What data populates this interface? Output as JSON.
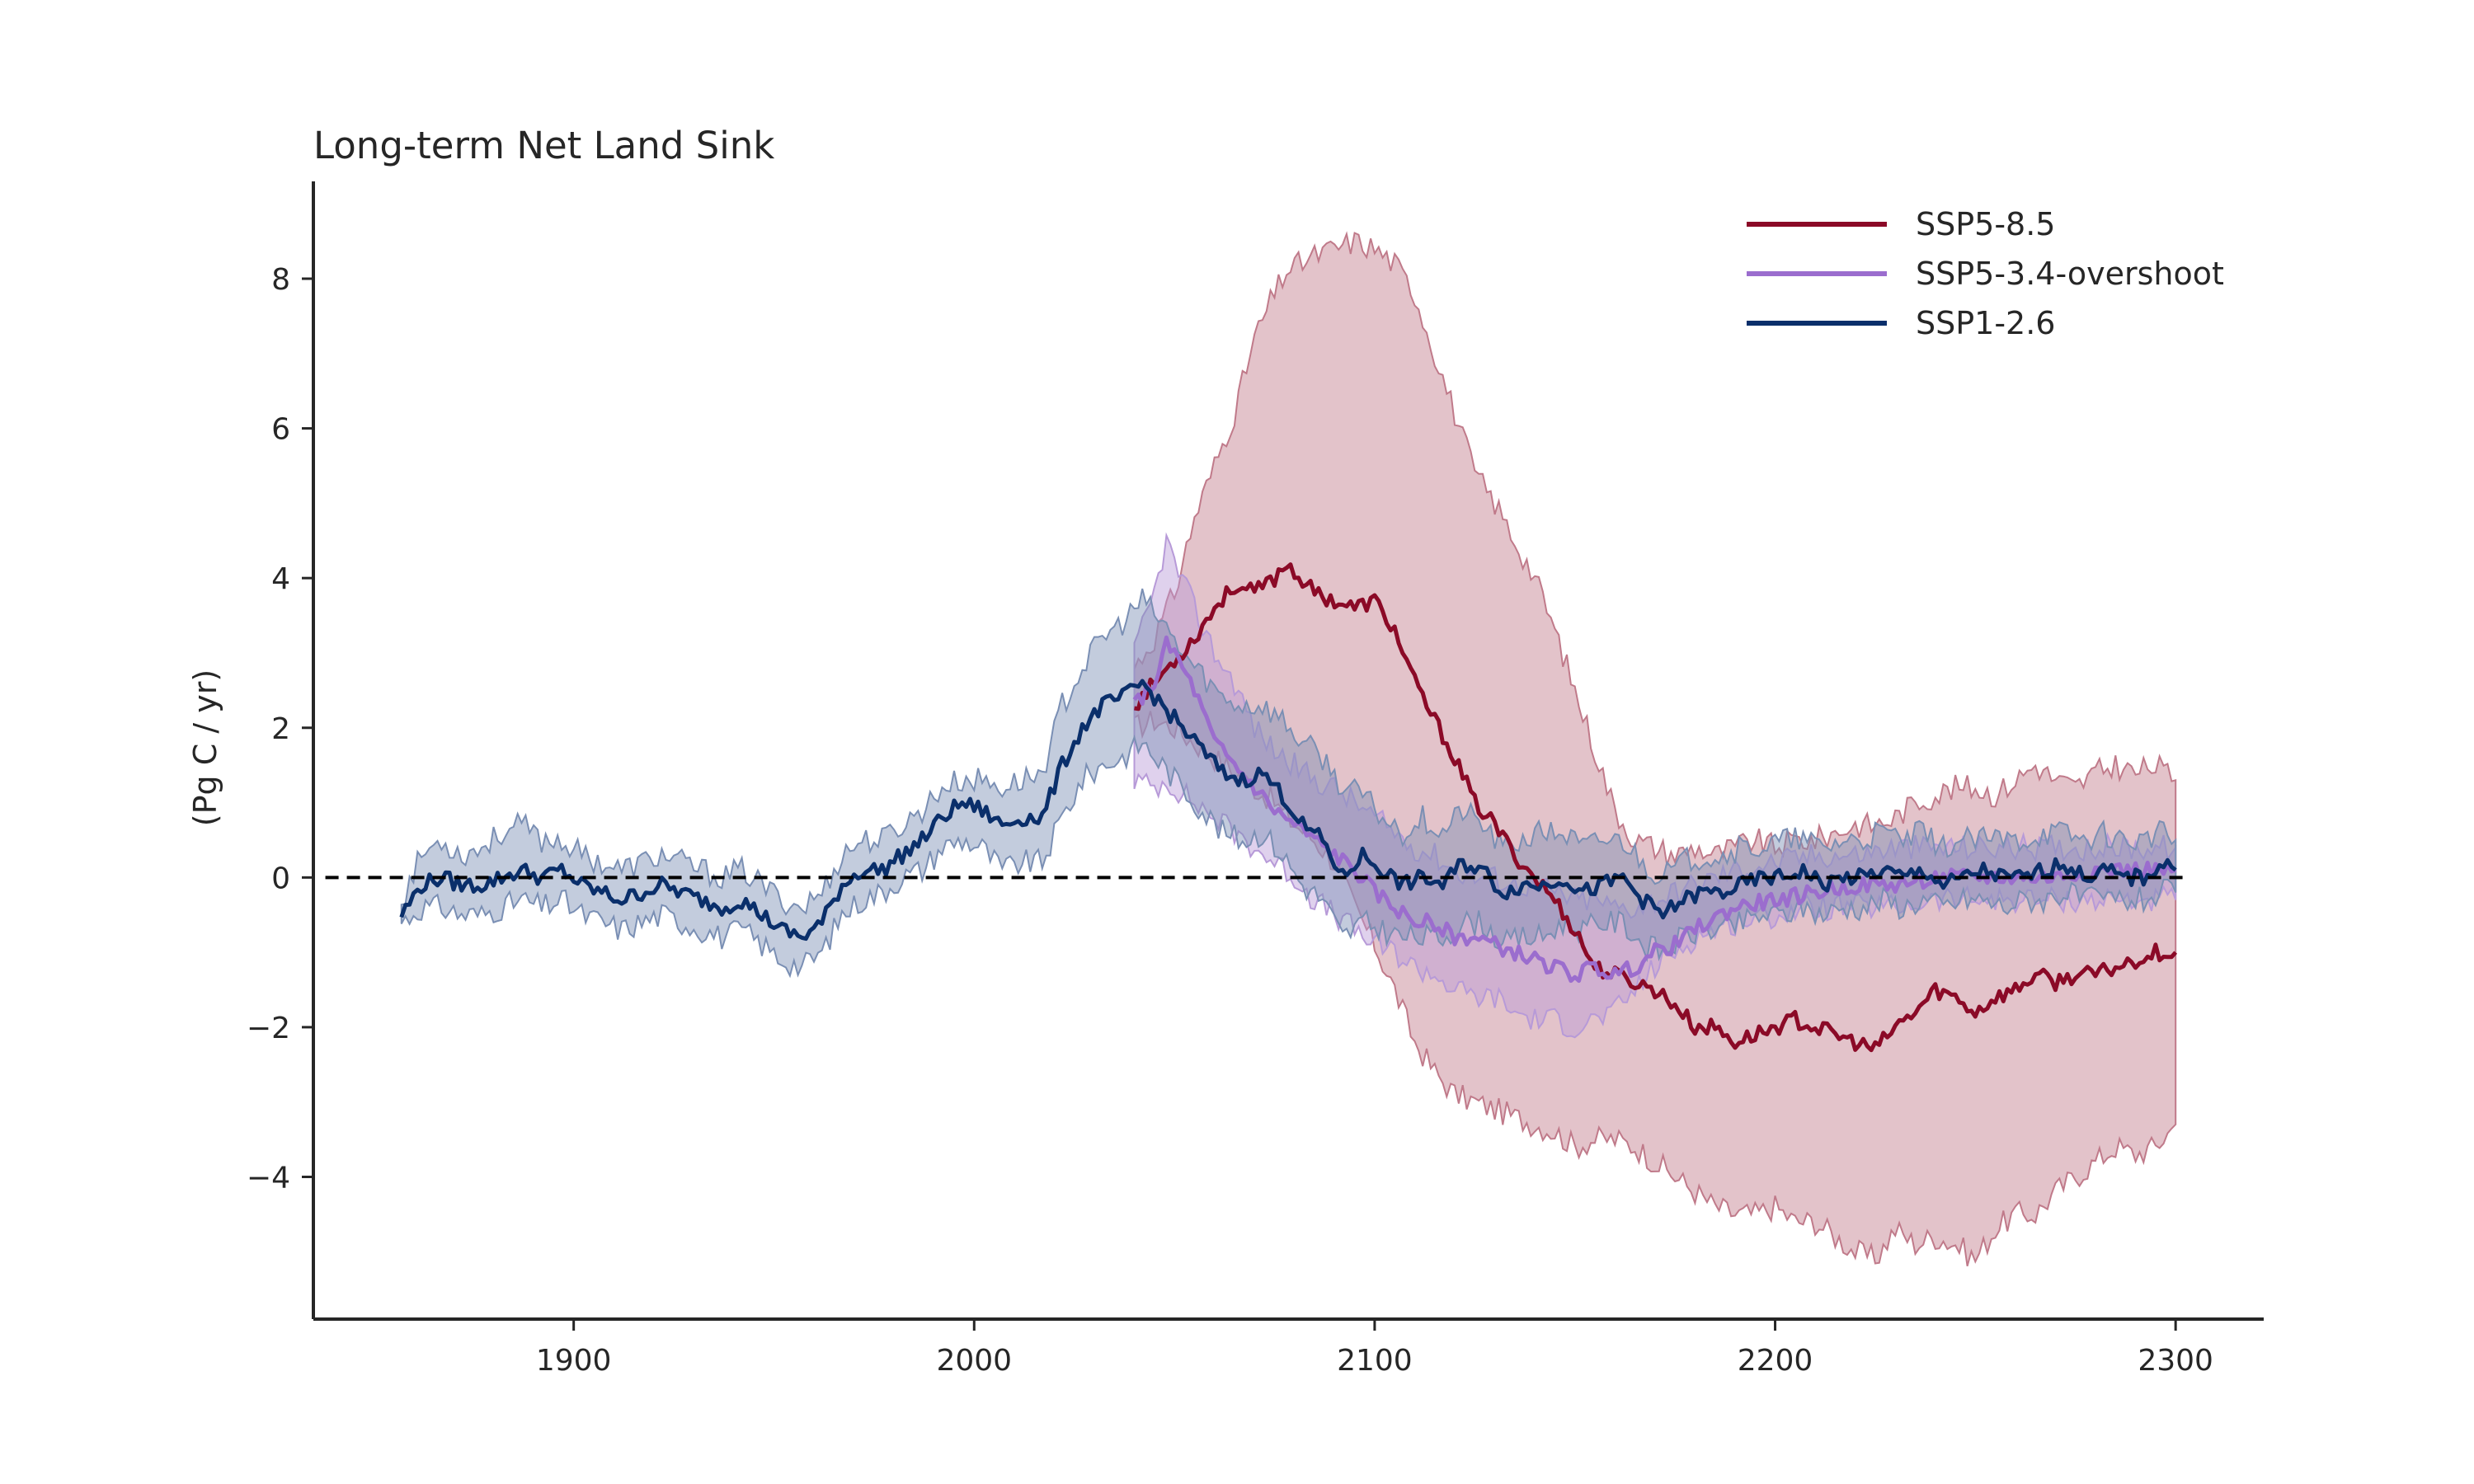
{
  "chart_data": {
    "type": "line",
    "title": "Long-term Net Land Sink",
    "xlabel": "",
    "ylabel": "(Pg C / yr)",
    "xlim": [
      1835,
      2322
    ],
    "ylim": [
      -5.9,
      9.3
    ],
    "xticks": [
      1900,
      2000,
      2100,
      2200,
      2300
    ],
    "xtick_labels": [
      "1900",
      "2000",
      "2100",
      "2200",
      "2300"
    ],
    "yticks": [
      -4,
      -2,
      0,
      2,
      4,
      6,
      8
    ],
    "ytick_labels": [
      "−4",
      "−2",
      "0",
      "2",
      "4",
      "6",
      "8"
    ],
    "zero_line": {
      "y": 0,
      "style": "dashed",
      "color": "#000000"
    },
    "grid": false,
    "legend_position": "top-right",
    "series": [
      {
        "name": "SSP5-8.5",
        "color": "#8b0a27",
        "band_color": "#c07a8a",
        "x": [
          2040,
          2045,
          2050,
          2055,
          2060,
          2065,
          2070,
          2075,
          2078,
          2085,
          2090,
          2095,
          2100,
          2105,
          2110,
          2115,
          2120,
          2125,
          2130,
          2135,
          2140,
          2145,
          2150,
          2155,
          2160,
          2165,
          2170,
          2175,
          2180,
          2185,
          2190,
          2195,
          2200,
          2205,
          2210,
          2215,
          2220,
          2225,
          2230,
          2235,
          2240,
          2245,
          2250,
          2255,
          2260,
          2265,
          2270,
          2275,
          2280,
          2285,
          2290,
          2295,
          2300
        ],
        "y": [
          2.3,
          2.6,
          2.9,
          3.2,
          3.6,
          3.9,
          3.8,
          4.0,
          4.2,
          3.8,
          3.7,
          3.6,
          3.7,
          3.3,
          2.6,
          2.1,
          1.6,
          1.0,
          0.7,
          0.3,
          0.0,
          -0.3,
          -0.7,
          -1.2,
          -1.3,
          -1.4,
          -1.5,
          -1.7,
          -2.0,
          -2.0,
          -2.2,
          -2.1,
          -2.0,
          -1.9,
          -2.0,
          -2.1,
          -2.2,
          -2.3,
          -2.0,
          -1.8,
          -1.5,
          -1.6,
          -1.8,
          -1.6,
          -1.5,
          -1.3,
          -1.4,
          -1.3,
          -1.3,
          -1.2,
          -1.1,
          -1.0,
          -1.0
        ],
        "lower": [
          2.0,
          2.1,
          2.0,
          1.8,
          1.6,
          1.4,
          1.2,
          1.0,
          0.8,
          0.5,
          0.2,
          -0.4,
          -0.9,
          -1.5,
          -2.2,
          -2.6,
          -2.9,
          -3.0,
          -3.1,
          -3.2,
          -3.3,
          -3.4,
          -3.6,
          -3.5,
          -3.5,
          -3.6,
          -3.8,
          -4.0,
          -4.2,
          -4.4,
          -4.5,
          -4.5,
          -4.4,
          -4.6,
          -4.6,
          -4.8,
          -5.0,
          -5.1,
          -4.7,
          -4.9,
          -4.8,
          -4.9,
          -5.1,
          -4.7,
          -4.5,
          -4.5,
          -4.2,
          -4.0,
          -3.8,
          -3.6,
          -3.7,
          -3.6,
          -3.3
        ],
        "upper": [
          2.8,
          3.2,
          3.8,
          4.8,
          5.5,
          6.2,
          7.2,
          7.8,
          8.1,
          8.3,
          8.4,
          8.5,
          8.4,
          8.2,
          7.8,
          7.0,
          6.2,
          5.4,
          5.0,
          4.5,
          4.0,
          3.3,
          2.5,
          1.7,
          0.9,
          0.5,
          0.4,
          0.3,
          0.4,
          0.3,
          0.4,
          0.5,
          0.4,
          0.5,
          0.5,
          0.6,
          0.7,
          0.7,
          0.8,
          1.0,
          1.1,
          1.2,
          1.2,
          1.1,
          1.3,
          1.5,
          1.3,
          1.2,
          1.4,
          1.5,
          1.4,
          1.5,
          1.3
        ]
      },
      {
        "name": "SSP5-3.4-overshoot",
        "color": "#9b6dce",
        "band_color": "#b79ad8",
        "x": [
          2040,
          2045,
          2048,
          2050,
          2055,
          2060,
          2065,
          2070,
          2075,
          2080,
          2085,
          2090,
          2095,
          2100,
          2105,
          2110,
          2115,
          2120,
          2125,
          2130,
          2135,
          2140,
          2145,
          2150,
          2155,
          2160,
          2165,
          2170,
          2175,
          2180,
          2190,
          2200,
          2210,
          2220,
          2230,
          2240,
          2250,
          2260,
          2270,
          2280,
          2290,
          2300
        ],
        "y": [
          2.3,
          2.6,
          3.1,
          3.0,
          2.5,
          1.8,
          1.5,
          1.2,
          0.9,
          0.7,
          0.5,
          0.3,
          0.1,
          -0.2,
          -0.4,
          -0.6,
          -0.6,
          -0.8,
          -0.8,
          -0.9,
          -1.0,
          -1.1,
          -1.2,
          -1.3,
          -1.2,
          -1.3,
          -1.2,
          -1.0,
          -0.9,
          -0.7,
          -0.4,
          -0.3,
          -0.2,
          -0.1,
          -0.1,
          0.0,
          0.0,
          0.0,
          0.0,
          0.1,
          0.1,
          0.1
        ],
        "lower": [
          1.3,
          1.2,
          1.3,
          1.2,
          1.0,
          0.8,
          0.6,
          0.4,
          0.2,
          0.0,
          -0.3,
          -0.5,
          -0.7,
          -0.9,
          -1.0,
          -1.2,
          -1.3,
          -1.5,
          -1.6,
          -1.6,
          -1.8,
          -1.9,
          -1.9,
          -2.0,
          -1.9,
          -1.8,
          -1.5,
          -1.2,
          -1.0,
          -0.8,
          -0.6,
          -0.5,
          -0.4,
          -0.4,
          -0.4,
          -0.3,
          -0.3,
          -0.3,
          -0.3,
          -0.3,
          -0.3,
          -0.3
        ],
        "upper": [
          3.0,
          3.8,
          4.5,
          4.2,
          3.6,
          3.0,
          2.6,
          2.0,
          1.7,
          1.5,
          1.3,
          1.2,
          1.0,
          0.8,
          0.6,
          0.4,
          0.3,
          0.1,
          0.0,
          0.0,
          -0.1,
          -0.1,
          -0.2,
          -0.3,
          -0.3,
          -0.4,
          -0.4,
          -0.3,
          -0.2,
          -0.1,
          0.1,
          0.2,
          0.3,
          0.3,
          0.4,
          0.4,
          0.4,
          0.4,
          0.4,
          0.4,
          0.4,
          0.4
        ]
      },
      {
        "name": "SSP1-2.6",
        "color": "#0a2f6b",
        "band_color": "#7a8fb4",
        "x": [
          1857,
          1862,
          1867,
          1872,
          1877,
          1882,
          1887,
          1892,
          1897,
          1902,
          1907,
          1912,
          1917,
          1922,
          1927,
          1932,
          1937,
          1942,
          1947,
          1952,
          1957,
          1962,
          1967,
          1972,
          1977,
          1982,
          1987,
          1992,
          1997,
          2002,
          2007,
          2012,
          2017,
          2022,
          2027,
          2032,
          2037,
          2042,
          2047,
          2052,
          2057,
          2062,
          2067,
          2072,
          2077,
          2082,
          2087,
          2092,
          2097,
          2102,
          2107,
          2112,
          2117,
          2122,
          2127,
          2132,
          2137,
          2142,
          2147,
          2152,
          2157,
          2162,
          2167,
          2172,
          2177,
          2182,
          2187,
          2192,
          2197,
          2202,
          2207,
          2212,
          2217,
          2222,
          2227,
          2232,
          2237,
          2242,
          2247,
          2252,
          2257,
          2262,
          2267,
          2272,
          2277,
          2282,
          2287,
          2292,
          2297,
          2300
        ],
        "y": [
          -0.5,
          -0.1,
          0.0,
          -0.1,
          -0.1,
          0.0,
          0.1,
          0.0,
          0.1,
          -0.1,
          -0.2,
          -0.3,
          -0.2,
          -0.1,
          -0.2,
          -0.3,
          -0.4,
          -0.3,
          -0.5,
          -0.7,
          -0.8,
          -0.6,
          -0.1,
          0.1,
          0.1,
          0.3,
          0.5,
          0.8,
          1.0,
          0.9,
          0.7,
          0.8,
          0.8,
          1.5,
          2.0,
          2.3,
          2.4,
          2.6,
          2.3,
          2.0,
          1.7,
          1.4,
          1.3,
          1.4,
          1.1,
          0.7,
          0.5,
          0.0,
          0.3,
          0.1,
          -0.1,
          0.0,
          -0.1,
          0.2,
          0.1,
          -0.2,
          -0.1,
          -0.1,
          0.0,
          -0.2,
          -0.1,
          0.0,
          -0.3,
          -0.5,
          -0.3,
          -0.2,
          -0.2,
          -0.1,
          0.0,
          0.0,
          0.1,
          -0.1,
          0.0,
          0.0,
          0.1,
          0.0,
          0.1,
          -0.1,
          0.0,
          0.1,
          0.0,
          0.0,
          0.1,
          0.2,
          0.0,
          0.1,
          0.0,
          0.0,
          0.2,
          0.1
        ],
        "lower": [
          -0.6,
          -0.4,
          -0.4,
          -0.5,
          -0.5,
          -0.4,
          -0.3,
          -0.4,
          -0.3,
          -0.5,
          -0.6,
          -0.7,
          -0.6,
          -0.5,
          -0.6,
          -0.7,
          -0.8,
          -0.7,
          -0.9,
          -1.1,
          -1.2,
          -1.0,
          -0.5,
          -0.3,
          -0.2,
          0.0,
          0.1,
          0.4,
          0.5,
          0.4,
          0.1,
          0.2,
          0.2,
          0.8,
          1.3,
          1.5,
          1.6,
          1.8,
          1.5,
          1.2,
          0.9,
          0.6,
          0.5,
          0.6,
          0.3,
          -0.1,
          -0.3,
          -0.8,
          -0.6,
          -0.7,
          -0.8,
          -0.8,
          -0.8,
          -0.6,
          -0.6,
          -0.9,
          -0.8,
          -0.8,
          -0.6,
          -0.7,
          -0.6,
          -0.6,
          -0.9,
          -1.0,
          -0.8,
          -0.7,
          -0.7,
          -0.6,
          -0.5,
          -0.5,
          -0.4,
          -0.5,
          -0.4,
          -0.4,
          -0.3,
          -0.4,
          -0.3,
          -0.4,
          -0.3,
          -0.3,
          -0.4,
          -0.3,
          -0.3,
          -0.2,
          -0.3,
          -0.3,
          -0.3,
          -0.3,
          -0.2,
          -0.2
        ],
        "upper": [
          -0.3,
          0.3,
          0.5,
          0.3,
          0.4,
          0.6,
          0.7,
          0.5,
          0.5,
          0.3,
          0.2,
          0.1,
          0.2,
          0.3,
          0.2,
          0.1,
          0.0,
          0.1,
          -0.1,
          -0.3,
          -0.4,
          -0.2,
          0.3,
          0.5,
          0.5,
          0.7,
          0.9,
          1.2,
          1.3,
          1.3,
          1.2,
          1.3,
          1.4,
          2.3,
          2.8,
          3.2,
          3.4,
          3.7,
          3.4,
          3.0,
          2.7,
          2.4,
          2.3,
          2.3,
          2.1,
          1.8,
          1.6,
          1.2,
          1.1,
          0.8,
          0.6,
          0.8,
          0.6,
          0.9,
          0.7,
          0.4,
          0.5,
          0.6,
          0.6,
          0.4,
          0.5,
          0.5,
          0.2,
          0.0,
          0.2,
          0.3,
          0.3,
          0.4,
          0.4,
          0.5,
          0.5,
          0.4,
          0.5,
          0.5,
          0.6,
          0.5,
          0.6,
          0.4,
          0.5,
          0.5,
          0.5,
          0.5,
          0.6,
          0.6,
          0.5,
          0.6,
          0.5,
          0.5,
          0.6,
          0.5
        ]
      }
    ]
  }
}
